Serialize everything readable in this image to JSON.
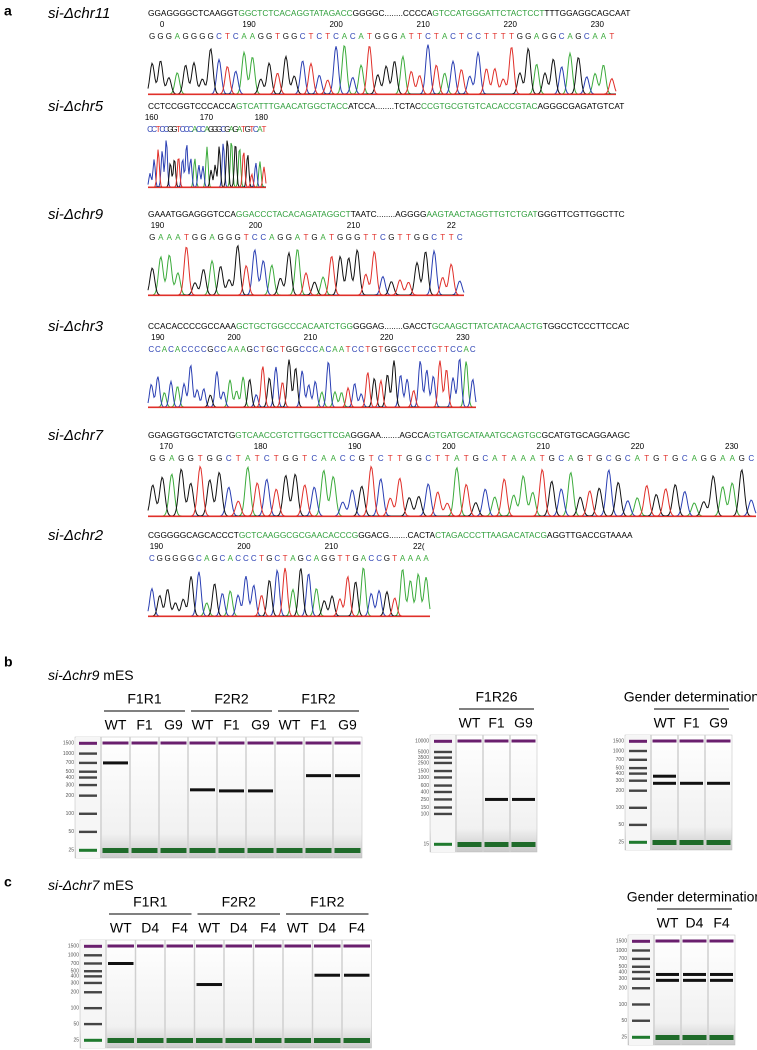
{
  "panel_a": {
    "label": "a",
    "samples": [
      {
        "name": "si-Δchr11",
        "reference": [
          {
            "text": "GGAGGGGCTCAAGGT",
            "color": "#000000"
          },
          {
            "text": "GGCTCTCACAGGTATAGACC",
            "color": "#2e9e3a"
          },
          {
            "text": "GGGGC........CCCCA",
            "color": "#000000"
          },
          {
            "text": "GTCCATGGGATTCTACTCCT",
            "color": "#2e9e3a"
          },
          {
            "text": "TTTGGAGGCAGCAAT",
            "color": "#000000"
          }
        ],
        "read": "GGGAGGGGCTCAAGGTGGCTCTCACATGGGATTCTACTCCTTTTGGAGGCAGCAAT",
        "ticks": [
          0,
          190,
          200,
          210,
          220,
          230
        ]
      },
      {
        "name": "si-Δchr5",
        "reference": [
          {
            "text": "CCTCCGGTCCCACCA",
            "color": "#000000"
          },
          {
            "text": "GTCATTTGAACATGGCTACC",
            "color": "#2e9e3a"
          },
          {
            "text": "ATCCA........TCTAC",
            "color": "#000000"
          },
          {
            "text": "CCGTGCGTGTCACACCGTAC",
            "color": "#2e9e3a"
          },
          {
            "text": "AGGGCGAGATGTCAT",
            "color": "#000000"
          }
        ],
        "read": "CCTCCGGTCCCACCAGGGCGAGATGTCAT",
        "ticks": [
          160,
          170,
          180
        ]
      },
      {
        "name": "si-Δchr9",
        "reference": [
          {
            "text": "GAAATGGAGGGTCCA",
            "color": "#000000"
          },
          {
            "text": "GGACCCTACACAGATAGGCT",
            "color": "#2e9e3a"
          },
          {
            "text": "TAATC........AGGGG",
            "color": "#000000"
          },
          {
            "text": "AAGTAACTAGGTTGTCTGAT",
            "color": "#2e9e3a"
          },
          {
            "text": "GGGTTCGTTGGCTTC",
            "color": "#000000"
          }
        ],
        "read": "GAAATGGAGGGTCCAGGATGATGGGTTCGTTGGCTTC",
        "ticks": [
          190,
          200,
          210,
          22
        ]
      },
      {
        "name": "si-Δchr3",
        "reference": [
          {
            "text": "CCACACCCCGCCAAA",
            "color": "#000000"
          },
          {
            "text": "GCTGCTGGCCCACAATCTGG",
            "color": "#2e9e3a"
          },
          {
            "text": "GGGAG........GACCT",
            "color": "#000000"
          },
          {
            "text": "GCAAGCTTATCATACAACTG",
            "color": "#2e9e3a"
          },
          {
            "text": "TGGCCTCCCTTCCAC",
            "color": "#000000"
          }
        ],
        "read": "CCACACCCCGCCAAAGCTGCTGGCCCACAATCCTGTGGCCTCCCTTCCAC",
        "ticks": [
          190,
          200,
          210,
          220,
          230
        ]
      },
      {
        "name": "si-Δchr7",
        "reference": [
          {
            "text": "GGAGGTGGCTATCTG",
            "color": "#000000"
          },
          {
            "text": "GTCAACCGTCTTGGCTTCGA",
            "color": "#2e9e3a"
          },
          {
            "text": "GGGAA........AGCCA",
            "color": "#000000"
          },
          {
            "text": "GTGATGCATAAATGCAGTGC",
            "color": "#2e9e3a"
          },
          {
            "text": "GCATGTGCAGGAAGC",
            "color": "#000000"
          }
        ],
        "read": "GGAGGTGGCTATCTGGTCAACCGTCTTGGCTTATGCATAAATGCAGTGCGCATGTGCAGGAAGC",
        "ticks": [
          170,
          180,
          190,
          200,
          210,
          220,
          230
        ]
      },
      {
        "name": "si-Δchr2",
        "reference": [
          {
            "text": "CGGGGGCAGCACCCT",
            "color": "#000000"
          },
          {
            "text": "GCTCAAGGCGCGAACACCCG",
            "color": "#2e9e3a"
          },
          {
            "text": "GGACG........CACTA",
            "color": "#000000"
          },
          {
            "text": "CTAGACCCTTAAGACATACG",
            "color": "#2e9e3a"
          },
          {
            "text": "AGGTTGACCGTAAAA",
            "color": "#000000"
          }
        ],
        "read": "CGGGGGCAGCACCCTGCTAGCAGGTTGACCGTAAAA",
        "ticks": [
          190,
          200,
          210,
          "22("
        ]
      }
    ]
  },
  "panel_b": {
    "label": "b",
    "title": "si-Δchr9",
    "title_suffix": "mES",
    "gels": [
      {
        "ladder": [
          1500,
          1000,
          700,
          500,
          400,
          300,
          200,
          100,
          50,
          25
        ],
        "groups": [
          {
            "name": "F1R1",
            "lanes": [
              {
                "label": "WT",
                "bands": [
                  700
                ]
              },
              {
                "label": "F1",
                "bands": []
              },
              {
                "label": "G9",
                "bands": []
              }
            ]
          },
          {
            "name": "F2R2",
            "lanes": [
              {
                "label": "WT",
                "bands": [
                  250
                ]
              },
              {
                "label": "F1",
                "bands": [
                  240
                ]
              },
              {
                "label": "G9",
                "bands": [
                  240
                ]
              }
            ]
          },
          {
            "name": "F1R2",
            "lanes": [
              {
                "label": "WT",
                "bands": []
              },
              {
                "label": "F1",
                "bands": [
                  430
                ]
              },
              {
                "label": "G9",
                "bands": [
                  430
                ]
              }
            ]
          }
        ]
      },
      {
        "ladder": [
          10000,
          5000,
          3500,
          2500,
          1500,
          1000,
          600,
          400,
          250,
          150,
          100,
          15
        ],
        "groups": [
          {
            "name": "F1R26",
            "lanes": [
              {
                "label": "WT",
                "bands": []
              },
              {
                "label": "F1",
                "bands": [
                  250
                ]
              },
              {
                "label": "G9",
                "bands": [
                  250
                ]
              }
            ]
          }
        ]
      },
      {
        "ladder": [
          1500,
          1000,
          700,
          500,
          400,
          300,
          200,
          100,
          50,
          25
        ],
        "groups": [
          {
            "name": "Gender determination",
            "lanes": [
              {
                "label": "WT",
                "bands": [
                  360,
                  270
                ]
              },
              {
                "label": "F1",
                "bands": [
                  270
                ]
              },
              {
                "label": "G9",
                "bands": [
                  270
                ]
              }
            ]
          }
        ]
      }
    ]
  },
  "panel_c": {
    "label": "c",
    "title": "si-Δchr7",
    "title_suffix": "mES",
    "gels": [
      {
        "ladder": [
          1500,
          1000,
          700,
          500,
          400,
          300,
          200,
          100,
          50,
          25
        ],
        "groups": [
          {
            "name": "F1R1",
            "lanes": [
              {
                "label": "WT",
                "bands": [
                  700
                ]
              },
              {
                "label": "D4",
                "bands": []
              },
              {
                "label": "F4",
                "bands": []
              }
            ]
          },
          {
            "name": "F2R2",
            "lanes": [
              {
                "label": "WT",
                "bands": [
                  280
                ]
              },
              {
                "label": "D4",
                "bands": []
              },
              {
                "label": "F4",
                "bands": []
              }
            ]
          },
          {
            "name": "F1R2",
            "lanes": [
              {
                "label": "WT",
                "bands": []
              },
              {
                "label": "D4",
                "bands": [
                  420
                ]
              },
              {
                "label": "F4",
                "bands": [
                  420
                ]
              }
            ]
          }
        ]
      },
      {
        "ladder": [
          1500,
          1000,
          700,
          500,
          400,
          300,
          200,
          100,
          50,
          25
        ],
        "groups": [
          {
            "name": "Gender determination",
            "lanes": [
              {
                "label": "WT",
                "bands": [
                  360,
                  280
                ]
              },
              {
                "label": "D4",
                "bands": [
                  360,
                  280
                ]
              },
              {
                "label": "F4",
                "bands": [
                  360,
                  280
                ]
              }
            ]
          }
        ]
      }
    ]
  }
}
